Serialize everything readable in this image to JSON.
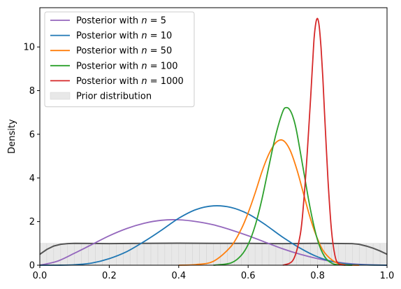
{
  "chart_data": {
    "type": "line",
    "title": "",
    "xlabel": "",
    "ylabel": "Density",
    "xlim": [
      0.0,
      1.0
    ],
    "ylim": [
      0,
      11.8
    ],
    "xticks": [
      0.0,
      0.2,
      0.4,
      0.6,
      0.8,
      1.0
    ],
    "xtick_labels": [
      "0.0",
      "0.2",
      "0.4",
      "0.6",
      "0.8",
      "1.0"
    ],
    "yticks": [
      0,
      2,
      4,
      6,
      8,
      10
    ],
    "ytick_labels": [
      "0",
      "2",
      "4",
      "6",
      "8",
      "10"
    ],
    "legend_position": "top-left",
    "grid": false,
    "series": [
      {
        "name": "Posterior with n = 5",
        "legend_prefix": "Posterior with ",
        "legend_var": "n",
        "legend_value": "= 5",
        "color": "#9467bd",
        "x": [
          0.0,
          0.05,
          0.1,
          0.15,
          0.2,
          0.25,
          0.3,
          0.35,
          0.4,
          0.45,
          0.5,
          0.55,
          0.6,
          0.65,
          0.7,
          0.75,
          0.8,
          0.85,
          0.9,
          0.95,
          1.0
        ],
        "y": [
          0.0,
          0.18,
          0.55,
          0.95,
          1.35,
          1.68,
          1.92,
          2.06,
          2.08,
          2.0,
          1.85,
          1.62,
          1.35,
          1.05,
          0.75,
          0.5,
          0.3,
          0.15,
          0.06,
          0.02,
          0.0
        ]
      },
      {
        "name": "Posterior with n = 10",
        "legend_prefix": "Posterior with ",
        "legend_var": "n",
        "legend_value": "= 10",
        "color": "#1f77b4",
        "x": [
          0.0,
          0.05,
          0.1,
          0.15,
          0.2,
          0.25,
          0.3,
          0.35,
          0.4,
          0.45,
          0.5,
          0.55,
          0.6,
          0.65,
          0.7,
          0.75,
          0.8,
          0.85,
          0.9,
          0.95,
          1.0
        ],
        "y": [
          0.0,
          0.0,
          0.02,
          0.1,
          0.3,
          0.62,
          1.08,
          1.6,
          2.15,
          2.55,
          2.72,
          2.65,
          2.35,
          1.85,
          1.28,
          0.78,
          0.38,
          0.14,
          0.04,
          0.01,
          0.0
        ]
      },
      {
        "name": "Posterior with n = 50",
        "legend_prefix": "Posterior with ",
        "legend_var": "n",
        "legend_value": "= 50",
        "color": "#ff7f0e",
        "x": [
          0.4,
          0.45,
          0.5,
          0.55,
          0.58,
          0.6,
          0.62,
          0.64,
          0.66,
          0.68,
          0.7,
          0.72,
          0.74,
          0.76,
          0.78,
          0.8,
          0.82,
          0.85,
          0.88,
          0.92
        ],
        "y": [
          0.0,
          0.03,
          0.18,
          0.85,
          1.65,
          2.4,
          3.3,
          4.3,
          5.1,
          5.62,
          5.72,
          5.3,
          4.4,
          3.25,
          2.1,
          1.2,
          0.58,
          0.15,
          0.02,
          0.0
        ]
      },
      {
        "name": "Posterior with n = 100",
        "legend_prefix": "Posterior with ",
        "legend_var": "n",
        "legend_value": "= 100",
        "color": "#2ca02c",
        "x": [
          0.5,
          0.55,
          0.58,
          0.6,
          0.62,
          0.64,
          0.66,
          0.68,
          0.7,
          0.71,
          0.72,
          0.73,
          0.74,
          0.76,
          0.78,
          0.8,
          0.82,
          0.84,
          0.86,
          0.9
        ],
        "y": [
          0.0,
          0.1,
          0.45,
          0.95,
          1.8,
          3.05,
          4.55,
          6.0,
          7.05,
          7.22,
          7.12,
          6.75,
          6.1,
          4.3,
          2.5,
          1.15,
          0.4,
          0.1,
          0.02,
          0.0
        ]
      },
      {
        "name": "Posterior with n = 1000",
        "legend_prefix": "Posterior with ",
        "legend_var": "n",
        "legend_value": "= 1000",
        "color": "#d62728",
        "x": [
          0.7,
          0.73,
          0.75,
          0.76,
          0.77,
          0.78,
          0.785,
          0.79,
          0.795,
          0.8,
          0.805,
          0.81,
          0.815,
          0.82,
          0.83,
          0.84,
          0.85,
          0.86,
          0.88
        ],
        "y": [
          0.0,
          0.25,
          1.4,
          2.9,
          5.1,
          7.7,
          9.05,
          10.4,
          11.1,
          11.3,
          10.9,
          9.95,
          8.6,
          7.0,
          3.9,
          1.6,
          0.45,
          0.08,
          0.0
        ]
      }
    ],
    "prior": {
      "name": "Prior distribution",
      "fill_color": "#e8e8e8",
      "line_color": "#555555",
      "bar_value": 1.0,
      "bins": 50,
      "kde_x": [
        0.0,
        0.02,
        0.04,
        0.06,
        0.08,
        0.1,
        0.2,
        0.3,
        0.4,
        0.5,
        0.6,
        0.7,
        0.8,
        0.9,
        0.92,
        0.94,
        0.96,
        0.98,
        1.0
      ],
      "kde_y": [
        0.5,
        0.72,
        0.88,
        0.96,
        0.99,
        1.0,
        0.99,
        1.0,
        1.01,
        1.0,
        1.0,
        0.99,
        1.0,
        0.99,
        0.96,
        0.88,
        0.78,
        0.65,
        0.5
      ]
    }
  }
}
